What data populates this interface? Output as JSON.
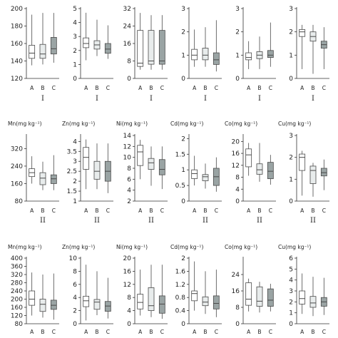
{
  "colors": {
    "A": "#ffffff",
    "B": "#e8ecec",
    "C": "#9aa4a4",
    "stroke": "#4a4a4a"
  },
  "chart_data": [
    {
      "type": "box",
      "title": "",
      "group": "I",
      "categories": [
        "A",
        "B",
        "C"
      ],
      "yticks": [
        120,
        140,
        160,
        180,
        200
      ],
      "ylim": [
        120,
        200
      ],
      "boxes": [
        {
          "min": 135,
          "q1": 143,
          "median": 149,
          "q3": 158,
          "max": 193
        },
        {
          "min": 136,
          "q1": 143,
          "median": 148,
          "q3": 159,
          "max": 195
        },
        {
          "min": 138,
          "q1": 148,
          "median": 154,
          "q3": 167,
          "max": 195
        }
      ]
    },
    {
      "type": "box",
      "title": "",
      "group": "I",
      "categories": [
        "A",
        "B",
        "C"
      ],
      "yticks": [
        0,
        1,
        2,
        3,
        4,
        5
      ],
      "ylim": [
        0,
        5
      ],
      "boxes": [
        {
          "min": 1.3,
          "q1": 2.2,
          "median": 2.5,
          "q3": 2.9,
          "max": 4.7
        },
        {
          "min": 1.6,
          "q1": 2.1,
          "median": 2.4,
          "q3": 2.7,
          "max": 4.2
        },
        {
          "min": 1.4,
          "q1": 1.8,
          "median": 2.1,
          "q3": 2.5,
          "max": 3.8
        }
      ]
    },
    {
      "type": "box",
      "title": "",
      "group": "I",
      "categories": [
        "A",
        "B",
        "C"
      ],
      "yticks": [
        0,
        8,
        16,
        24,
        32
      ],
      "ylim": [
        0,
        32
      ],
      "boxes": [
        {
          "min": 4,
          "q1": 5.5,
          "median": 7,
          "q3": 22,
          "max": 30
        },
        {
          "min": 4,
          "q1": 6.5,
          "median": 8,
          "q3": 22,
          "max": 29
        },
        {
          "min": 4,
          "q1": 6.5,
          "median": 8,
          "q3": 22,
          "max": 29
        }
      ]
    },
    {
      "type": "box",
      "title": "",
      "group": "I",
      "categories": [
        "A",
        "B",
        "C"
      ],
      "yticks": [
        0,
        1,
        2,
        3
      ],
      "ylim": [
        0,
        3
      ],
      "boxes": [
        {
          "min": 0.5,
          "q1": 0.8,
          "median": 1.0,
          "q3": 1.25,
          "max": 2.1
        },
        {
          "min": 0.5,
          "q1": 0.8,
          "median": 1.0,
          "q3": 1.3,
          "max": 2.2
        },
        {
          "min": 0.3,
          "q1": 0.6,
          "median": 0.8,
          "q3": 1.1,
          "max": 2.5
        }
      ]
    },
    {
      "type": "box",
      "title": "",
      "group": "I",
      "categories": [
        "A",
        "B",
        "C"
      ],
      "yticks": [
        0,
        1,
        2,
        3
      ],
      "ylim": [
        0,
        3
      ],
      "boxes": [
        {
          "min": 0.4,
          "q1": 0.8,
          "median": 0.9,
          "q3": 1.1,
          "max": 1.6
        },
        {
          "min": 0.4,
          "q1": 0.85,
          "median": 1.0,
          "q3": 1.15,
          "max": 1.8
        },
        {
          "min": 0.5,
          "q1": 0.9,
          "median": 1.0,
          "q3": 1.2,
          "max": 2.4
        }
      ]
    },
    {
      "type": "box",
      "title": "",
      "group": "I",
      "categories": [
        "A",
        "B",
        "C"
      ],
      "yticks": [
        0,
        1,
        2,
        3
      ],
      "ylim": [
        0,
        3
      ],
      "boxes": [
        {
          "min": 0.4,
          "q1": 1.8,
          "median": 2.0,
          "q3": 2.1,
          "max": 2.3
        },
        {
          "min": 0.2,
          "q1": 1.6,
          "median": 1.8,
          "q3": 2.0,
          "max": 2.3
        },
        {
          "min": 0.4,
          "q1": 1.3,
          "median": 1.45,
          "q3": 1.6,
          "max": 2.2
        }
      ]
    },
    {
      "type": "box",
      "title": "Mn(mg kg⁻¹)",
      "group": "II",
      "categories": [
        "A",
        "B",
        "C"
      ],
      "yticks": [
        80,
        160,
        240,
        320
      ],
      "ylim": [
        80,
        380
      ],
      "boxes": [
        {
          "min": 160,
          "q1": 192,
          "median": 210,
          "q3": 228,
          "max": 285
        },
        {
          "min": 130,
          "q1": 155,
          "median": 185,
          "q3": 210,
          "max": 260
        },
        {
          "min": 130,
          "q1": 160,
          "median": 182,
          "q3": 200,
          "max": 290
        }
      ]
    },
    {
      "type": "box",
      "title": "Zn(mg kg⁻¹)",
      "group": "II",
      "categories": [
        "A",
        "B",
        "C"
      ],
      "yticks": [
        1,
        1.5,
        2,
        2.5,
        3,
        3.5,
        4
      ],
      "ylim": [
        1,
        4.3
      ],
      "boxes": [
        {
          "min": 1.6,
          "q1": 2.6,
          "median": 3.2,
          "q3": 3.7,
          "max": 4.1
        },
        {
          "min": 1.6,
          "q1": 2.1,
          "median": 2.5,
          "q3": 3.0,
          "max": 3.9
        },
        {
          "min": 1.4,
          "q1": 2.0,
          "median": 2.5,
          "q3": 3.0,
          "max": 3.9
        }
      ]
    },
    {
      "type": "box",
      "title": "Ni(mg kg⁻¹)",
      "group": "II",
      "categories": [
        "A",
        "B",
        "C"
      ],
      "yticks": [
        2,
        4,
        6,
        8,
        10,
        12,
        14
      ],
      "ylim": [
        2,
        14
      ],
      "boxes": [
        {
          "min": 6.0,
          "q1": 8.5,
          "median": 11.0,
          "q3": 12.2,
          "max": 13.2
        },
        {
          "min": 4.8,
          "q1": 7.8,
          "median": 9.0,
          "q3": 9.8,
          "max": 12.0
        },
        {
          "min": 4.2,
          "q1": 6.8,
          "median": 7.8,
          "q3": 9.6,
          "max": 12.0
        }
      ]
    },
    {
      "type": "box",
      "title": "Cd(mg kg⁻¹)",
      "group": "II",
      "categories": [
        "A",
        "B",
        "C"
      ],
      "yticks": [
        0,
        0.5,
        1,
        1.5,
        2
      ],
      "ylim": [
        0,
        2.1
      ],
      "boxes": [
        {
          "min": 0.5,
          "q1": 0.72,
          "median": 0.88,
          "q3": 1.0,
          "max": 1.45
        },
        {
          "min": 0.4,
          "q1": 0.65,
          "median": 0.78,
          "q3": 0.85,
          "max": 1.2
        },
        {
          "min": 0.3,
          "q1": 0.5,
          "median": 0.78,
          "q3": 1.05,
          "max": 1.4
        }
      ]
    },
    {
      "type": "box",
      "title": "Co(mg kg⁻¹)",
      "group": "II",
      "categories": [
        "A",
        "B",
        "C"
      ],
      "yticks": [
        0,
        4,
        8,
        12,
        16,
        20
      ],
      "ylim": [
        0,
        22
      ],
      "boxes": [
        {
          "min": 8.5,
          "q1": 11.5,
          "median": 15.5,
          "q3": 17.5,
          "max": 19.5
        },
        {
          "min": 6.5,
          "q1": 9.0,
          "median": 10.5,
          "q3": 12.5,
          "max": 19.5
        },
        {
          "min": 5.5,
          "q1": 7.5,
          "median": 10.0,
          "q3": 13.0,
          "max": 15.5
        }
      ]
    },
    {
      "type": "box",
      "title": "Cu(mg kg⁻¹)",
      "group": "II",
      "categories": [
        "A",
        "B",
        "C"
      ],
      "yticks": [
        0,
        1,
        2,
        3
      ],
      "ylim": [
        0,
        3
      ],
      "boxes": [
        {
          "min": 0.25,
          "q1": 1.4,
          "median": 2.0,
          "q3": 2.15,
          "max": 2.3
        },
        {
          "min": 0.2,
          "q1": 0.8,
          "median": 1.4,
          "q3": 1.6,
          "max": 1.75
        },
        {
          "min": 0.5,
          "q1": 1.15,
          "median": 1.3,
          "q3": 1.5,
          "max": 1.9
        }
      ]
    },
    {
      "type": "box",
      "title": "Mn(mg kg⁻¹)",
      "group": "",
      "categories": [
        "A",
        "B",
        "C"
      ],
      "yticks": [
        80,
        120,
        160,
        200,
        240,
        280,
        320,
        360,
        400
      ],
      "ylim": [
        80,
        400
      ],
      "boxes": [
        {
          "min": 120,
          "q1": 170,
          "median": 200,
          "q3": 240,
          "max": 330
        },
        {
          "min": 110,
          "q1": 140,
          "median": 175,
          "q3": 200,
          "max": 320
        },
        {
          "min": 100,
          "q1": 150,
          "median": 170,
          "q3": 195,
          "max": 325
        }
      ]
    },
    {
      "type": "box",
      "title": "Zn(mg kg⁻¹)",
      "group": "",
      "categories": [
        "A",
        "B",
        "C"
      ],
      "yticks": [
        0,
        2,
        4,
        6,
        8,
        10
      ],
      "ylim": [
        0,
        10
      ],
      "boxes": [
        {
          "min": 0.5,
          "q1": 2.6,
          "median": 3.5,
          "q3": 4.2,
          "max": 9.0
        },
        {
          "min": 1.3,
          "q1": 2.2,
          "median": 3.3,
          "q3": 3.7,
          "max": 8.0
        },
        {
          "min": 0.8,
          "q1": 1.9,
          "median": 2.7,
          "q3": 3.4,
          "max": 7.0
        }
      ]
    },
    {
      "type": "box",
      "title": "Ni(mg kg⁻¹)",
      "group": "",
      "categories": [
        "A",
        "B",
        "C"
      ],
      "yticks": [
        0,
        4,
        8,
        12,
        16,
        20
      ],
      "ylim": [
        0,
        20
      ],
      "boxes": [
        {
          "min": 2.5,
          "q1": 4.5,
          "median": 6.5,
          "q3": 9.0,
          "max": 16.5
        },
        {
          "min": 2.0,
          "q1": 4.0,
          "median": 5.5,
          "q3": 11.0,
          "max": 18.0
        },
        {
          "min": 1.5,
          "q1": 3.2,
          "median": 6.0,
          "q3": 8.5,
          "max": 18.0
        }
      ]
    },
    {
      "type": "box",
      "title": "Cd(mg kg⁻¹)",
      "group": "",
      "categories": [
        "A",
        "B",
        "C"
      ],
      "yticks": [
        0,
        0.4,
        0.8,
        1.2,
        1.6,
        2.0
      ],
      "ylim": [
        0,
        2.0
      ],
      "boxes": [
        {
          "min": 0.4,
          "q1": 0.7,
          "median": 0.92,
          "q3": 1.0,
          "max": 1.9
        },
        {
          "min": 0.3,
          "q1": 0.55,
          "median": 0.66,
          "q3": 0.82,
          "max": 1.6
        },
        {
          "min": 0.2,
          "q1": 0.45,
          "median": 0.62,
          "q3": 0.85,
          "max": 1.65
        }
      ]
    },
    {
      "type": "box",
      "title": "Co(mg kg⁻¹)",
      "group": "",
      "categories": [
        "A",
        "B",
        "C"
      ],
      "yticks": [
        0,
        8,
        16,
        24
      ],
      "ylim": [
        0,
        32
      ],
      "boxes": [
        {
          "min": 6.0,
          "q1": 9.0,
          "median": 12.0,
          "q3": 20.0,
          "max": 22.0
        },
        {
          "min": 5.5,
          "q1": 8.5,
          "median": 11.0,
          "q3": 18.0,
          "max": 20.5
        },
        {
          "min": 6.0,
          "q1": 8.5,
          "median": 11.5,
          "q3": 17.0,
          "max": 19.5
        }
      ]
    },
    {
      "type": "box",
      "title": "Cu(mg kg⁻¹)",
      "group": "",
      "categories": [
        "A",
        "B",
        "C"
      ],
      "yticks": [
        0,
        1,
        2,
        3,
        4,
        5,
        6
      ],
      "ylim": [
        0,
        6
      ],
      "boxes": [
        {
          "min": 0.9,
          "q1": 1.8,
          "median": 2.3,
          "q3": 3.0,
          "max": 4.6
        },
        {
          "min": 0.7,
          "q1": 1.5,
          "median": 1.9,
          "q3": 2.5,
          "max": 4.3
        },
        {
          "min": 0.8,
          "q1": 1.6,
          "median": 2.0,
          "q3": 2.4,
          "max": 4.2
        }
      ]
    }
  ]
}
